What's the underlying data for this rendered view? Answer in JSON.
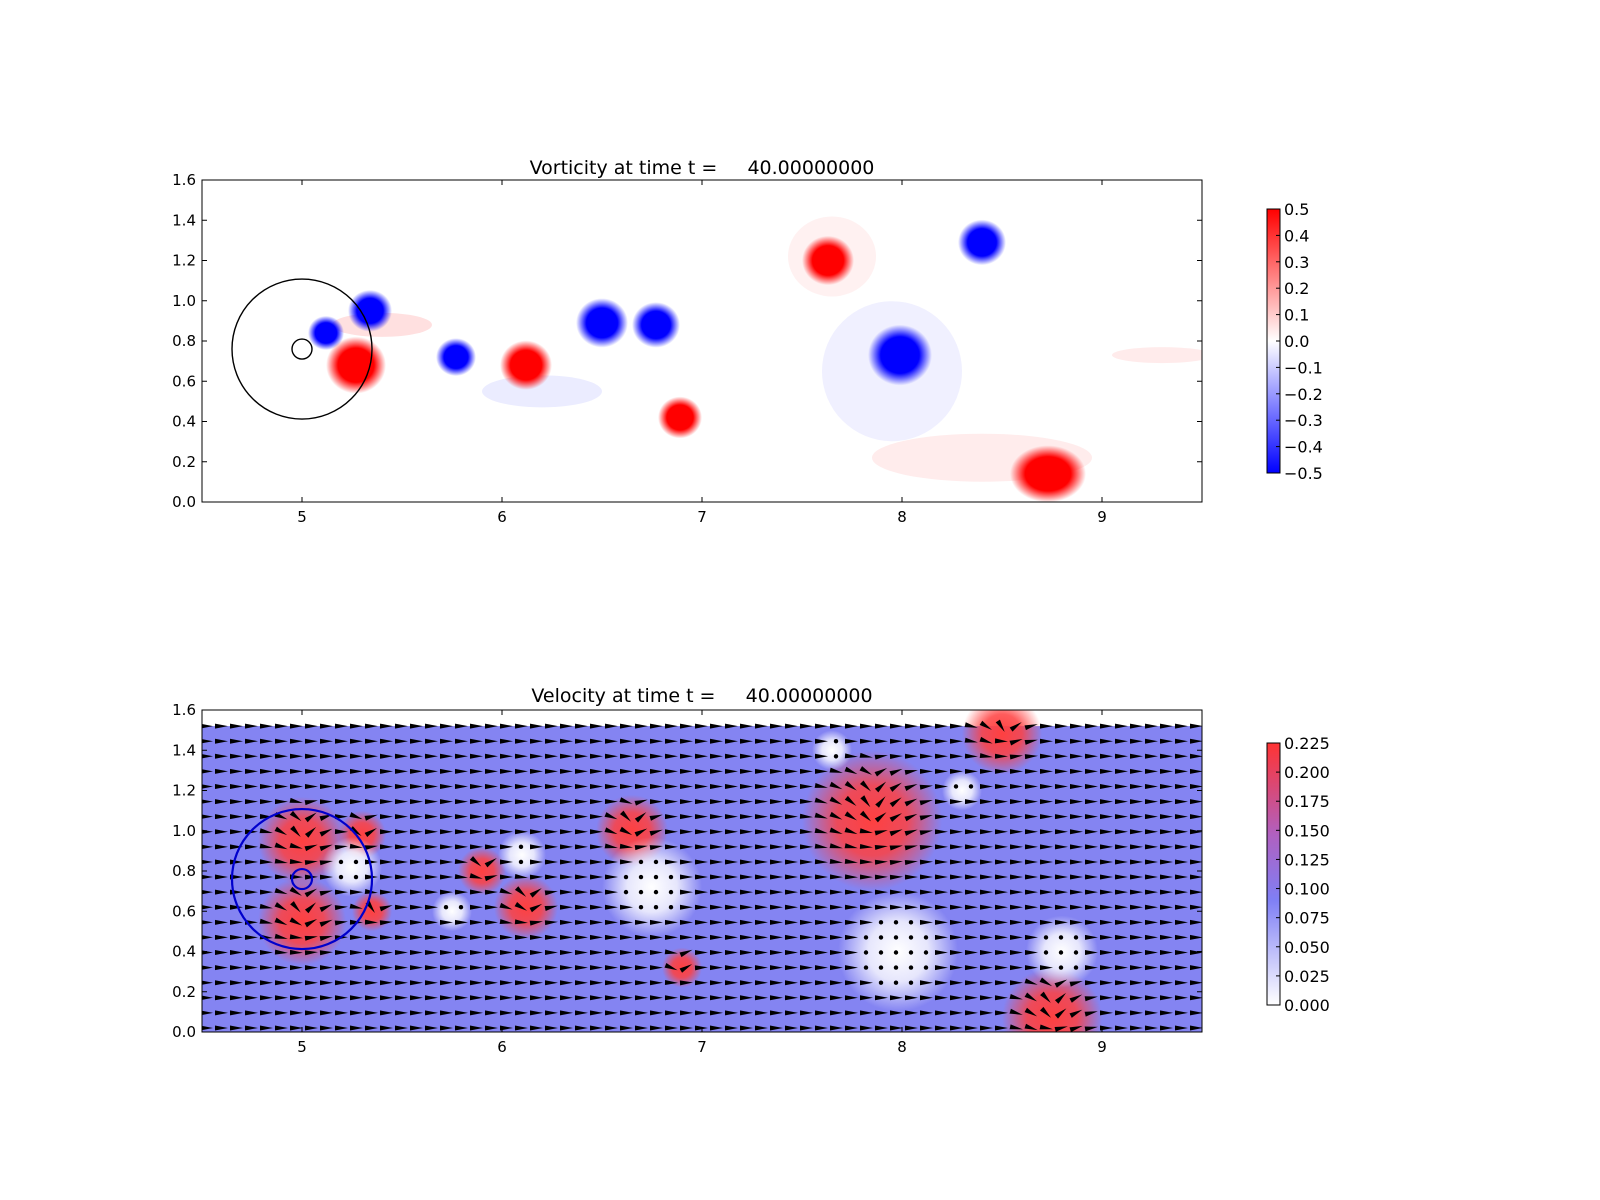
{
  "chart_data": [
    {
      "type": "heatmap",
      "title": "Vorticity at time t =     40.00000000",
      "xlabel": "",
      "ylabel": "",
      "xlim": [
        4.5,
        9.5
      ],
      "ylim": [
        0.0,
        1.6
      ],
      "x_ticks": [
        "5",
        "6",
        "7",
        "8",
        "9"
      ],
      "y_ticks": [
        "0.0",
        "0.2",
        "0.4",
        "0.6",
        "0.8",
        "1.0",
        "1.2",
        "1.4",
        "1.6"
      ],
      "colormap": {
        "low": "#0000ff",
        "mid": "#ffffff",
        "high": "#ff0000"
      },
      "colorbar": {
        "range": [
          -0.5,
          0.5
        ],
        "ticks": [
          "0.5",
          "0.4",
          "0.3",
          "0.2",
          "0.1",
          "0.0",
          "−0.1",
          "−0.2",
          "−0.3",
          "−0.4",
          "−0.5"
        ]
      },
      "vortices": [
        {
          "x": 5.34,
          "y": 0.95,
          "value": -0.5
        },
        {
          "x": 5.12,
          "y": 0.84,
          "value": -0.5
        },
        {
          "x": 5.27,
          "y": 0.68,
          "value": 0.5
        },
        {
          "x": 5.77,
          "y": 0.72,
          "value": -0.5
        },
        {
          "x": 6.12,
          "y": 0.68,
          "value": 0.5
        },
        {
          "x": 6.5,
          "y": 0.89,
          "value": -0.5
        },
        {
          "x": 6.77,
          "y": 0.88,
          "value": -0.5
        },
        {
          "x": 6.89,
          "y": 0.42,
          "value": 0.5
        },
        {
          "x": 7.63,
          "y": 1.2,
          "value": 0.5
        },
        {
          "x": 7.99,
          "y": 0.73,
          "value": -0.5
        },
        {
          "x": 8.4,
          "y": 1.29,
          "value": -0.5
        },
        {
          "x": 8.73,
          "y": 0.14,
          "value": 0.5
        }
      ],
      "circles": [
        {
          "cx": 5.0,
          "cy": 0.76,
          "r": 0.35,
          "color": "#000000"
        },
        {
          "cx": 5.0,
          "cy": 0.76,
          "r": 0.05,
          "color": "#000000"
        }
      ]
    },
    {
      "type": "heatmap",
      "title": "Velocity at time t =     40.00000000",
      "xlabel": "",
      "ylabel": "",
      "xlim": [
        4.5,
        9.5
      ],
      "ylim": [
        0.0,
        1.6
      ],
      "x_ticks": [
        "5",
        "6",
        "7",
        "8",
        "9"
      ],
      "y_ticks": [
        "0.0",
        "0.2",
        "0.4",
        "0.6",
        "0.8",
        "1.0",
        "1.2",
        "1.4",
        "1.6"
      ],
      "field_extent_y": [
        0.0,
        1.52
      ],
      "colormap": {
        "low": "#ffffff",
        "mid": "#7f7ff5",
        "high": "#ff3333"
      },
      "colorbar": {
        "range": [
          0.0,
          0.225
        ],
        "ticks": [
          "0.225",
          "0.200",
          "0.175",
          "0.150",
          "0.125",
          "0.100",
          "0.075",
          "0.050",
          "0.025",
          "0.000"
        ]
      },
      "background_speed": 0.1,
      "quiver": "black arrows on a regular grid",
      "circles": [
        {
          "cx": 5.0,
          "cy": 0.76,
          "r": 0.35,
          "color": "#0000cc"
        },
        {
          "cx": 5.0,
          "cy": 0.76,
          "r": 0.05,
          "color": "#0000cc"
        }
      ]
    }
  ]
}
